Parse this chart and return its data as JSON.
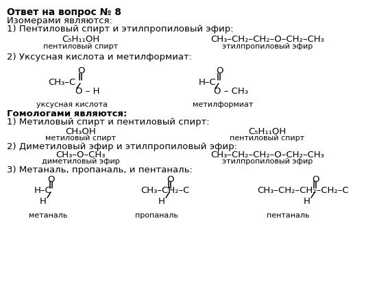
{
  "bg_color": "#ffffff",
  "title": "Ответ на вопрос № 8",
  "line1": "Изомерами являются:",
  "line2": "1) Пентиловый спирт и этилпропиловый эфир:",
  "pentyl_spirit": "C₅H₁₁OH",
  "pentyl_label": "пентиловый спирт",
  "ethylpropyl_ether": "CH₃–CH₂–CH₂–O–CH₂–CH₃",
  "ethylpropyl_label": "этилпропиловый эфир",
  "line3": "2) Уксусная кислота и метилформиат:",
  "acetic_ch3": "CH₃–C",
  "acetic_oh": "O – H",
  "acetic_label": "уксусная кислота",
  "formate_h": "H–C",
  "formate_och3": "O – CH₃",
  "formate_label": "метилформиат",
  "homo_title": "Гомологами являются:",
  "homo1": "1) Метиловый спирт и пентиловый спирт:",
  "methyl_spirit": "CH₃OH",
  "methyl_label": "метиловый спирт",
  "pentyl_spirit2": "C₅H₁₁OH",
  "pentyl_label2": "пентиловый спирт",
  "homo2": "2) Диметиловый эфир и этилпропиловый эфир:",
  "dimethyl": "CH₃–O–CH₃",
  "dimethyl_label": "диметиловый эфир",
  "ethylpropyl2": "CH₃–CH₂–CH₂–O–CH₂–CH₃",
  "ethylpropyl_label2": "этилпропиловый эфир",
  "homo3": "3) Метаналь, пропаналь, и пентаналь:",
  "methanal_left": "H–C",
  "methanal_h": "H",
  "methanal_label": "метаналь",
  "propanal_left": "CH₃–CH₂–C",
  "propanal_h": "H",
  "propanal_label": "пропаналь",
  "pentanal_left": "CH₃–CH₂–CH₂–CH₂–C",
  "pentanal_h": "H",
  "pentanal_label": "пентаналь"
}
